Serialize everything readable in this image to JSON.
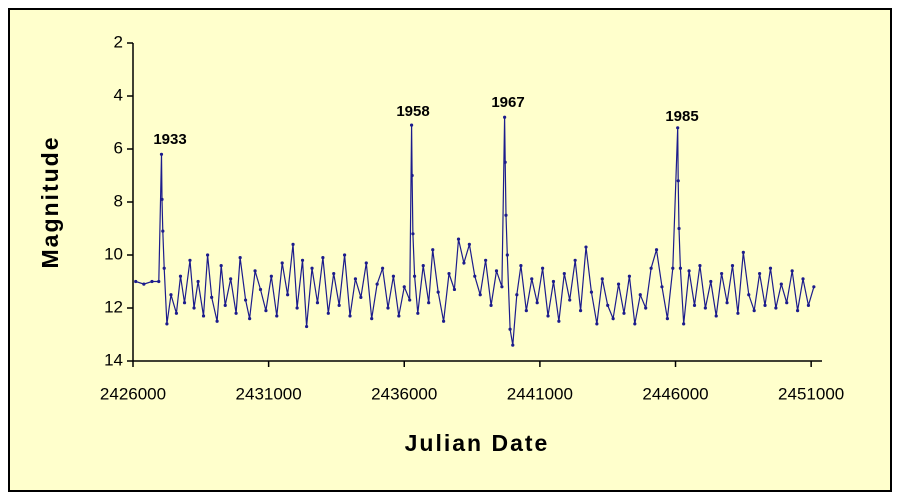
{
  "chart_data": {
    "type": "line",
    "x_label": "Julian Date",
    "y_label": "Magnitude",
    "xlim": [
      2426000,
      2451400
    ],
    "xticks": [
      2426000,
      2431000,
      2436000,
      2441000,
      2446000,
      2451000
    ],
    "ylim": [
      14,
      2
    ],
    "yticks": [
      14,
      12,
      10,
      8,
      6,
      4,
      2
    ],
    "color": "#1c1c8c",
    "annotations": [
      "1933",
      "1958",
      "1967",
      "1985"
    ],
    "x": [
      2426100,
      2426400,
      2426700,
      2426950,
      2427050,
      2427070,
      2427100,
      2427150,
      2427250,
      2427400,
      2427600,
      2427750,
      2427900,
      2428100,
      2428250,
      2428400,
      2428600,
      2428750,
      2428900,
      2429100,
      2429250,
      2429400,
      2429600,
      2429800,
      2429950,
      2430150,
      2430300,
      2430500,
      2430700,
      2430900,
      2431100,
      2431300,
      2431500,
      2431700,
      2431900,
      2432050,
      2432250,
      2432400,
      2432600,
      2432800,
      2433000,
      2433200,
      2433400,
      2433600,
      2433800,
      2434000,
      2434200,
      2434400,
      2434600,
      2434800,
      2435000,
      2435200,
      2435400,
      2435600,
      2435800,
      2436000,
      2436200,
      2436270,
      2436290,
      2436320,
      2436380,
      2436500,
      2436700,
      2436900,
      2437050,
      2437250,
      2437450,
      2437650,
      2437850,
      2438000,
      2438200,
      2438400,
      2438600,
      2438800,
      2439000,
      2439200,
      2439400,
      2439600,
      2439700,
      2439720,
      2439750,
      2439800,
      2439900,
      2440000,
      2440150,
      2440300,
      2440500,
      2440700,
      2440900,
      2441100,
      2441300,
      2441500,
      2441700,
      2441900,
      2442100,
      2442300,
      2442500,
      2442700,
      2442900,
      2443100,
      2443300,
      2443500,
      2443700,
      2443900,
      2444100,
      2444300,
      2444500,
      2444700,
      2444900,
      2445100,
      2445300,
      2445500,
      2445700,
      2445900,
      2446080,
      2446100,
      2446130,
      2446180,
      2446300,
      2446500,
      2446700,
      2446900,
      2447100,
      2447300,
      2447500,
      2447700,
      2447900,
      2448100,
      2448300,
      2448500,
      2448700,
      2448900,
      2449100,
      2449300,
      2449500,
      2449700,
      2449900,
      2450100,
      2450300,
      2450500,
      2450700,
      2450900,
      2451100
    ],
    "values": [
      11.0,
      11.1,
      11.0,
      11.0,
      6.2,
      7.9,
      9.1,
      10.5,
      12.6,
      11.5,
      12.2,
      10.8,
      11.8,
      10.2,
      12.0,
      11.0,
      12.3,
      10.0,
      11.6,
      12.5,
      10.4,
      11.9,
      10.9,
      12.2,
      10.1,
      11.7,
      12.4,
      10.6,
      11.3,
      12.1,
      10.8,
      12.3,
      10.3,
      11.5,
      9.6,
      12.0,
      10.2,
      12.7,
      10.5,
      11.8,
      10.1,
      12.2,
      10.7,
      11.9,
      10.0,
      12.3,
      10.9,
      11.6,
      10.3,
      12.4,
      11.1,
      10.5,
      12.0,
      10.8,
      12.3,
      11.2,
      11.7,
      5.1,
      7.0,
      9.2,
      10.8,
      12.2,
      10.4,
      11.8,
      9.8,
      11.4,
      12.5,
      10.7,
      11.3,
      9.4,
      10.3,
      9.6,
      10.8,
      11.5,
      10.2,
      11.9,
      10.6,
      11.2,
      4.8,
      6.5,
      8.5,
      10.0,
      12.8,
      13.4,
      11.5,
      10.4,
      12.1,
      10.9,
      11.8,
      10.5,
      12.3,
      11.0,
      12.5,
      10.7,
      11.7,
      10.2,
      12.1,
      9.7,
      11.4,
      12.6,
      10.9,
      11.9,
      12.4,
      11.1,
      12.2,
      10.8,
      12.6,
      11.5,
      12.0,
      10.5,
      9.8,
      11.2,
      12.4,
      10.5,
      5.2,
      7.2,
      9.0,
      10.5,
      12.6,
      10.6,
      11.9,
      10.4,
      12.0,
      11.0,
      12.3,
      10.7,
      11.8,
      10.4,
      12.2,
      9.9,
      11.5,
      12.1,
      10.7,
      11.9,
      10.5,
      12.0,
      11.1,
      11.8,
      10.6,
      12.1,
      10.9,
      11.9,
      11.2
    ]
  }
}
